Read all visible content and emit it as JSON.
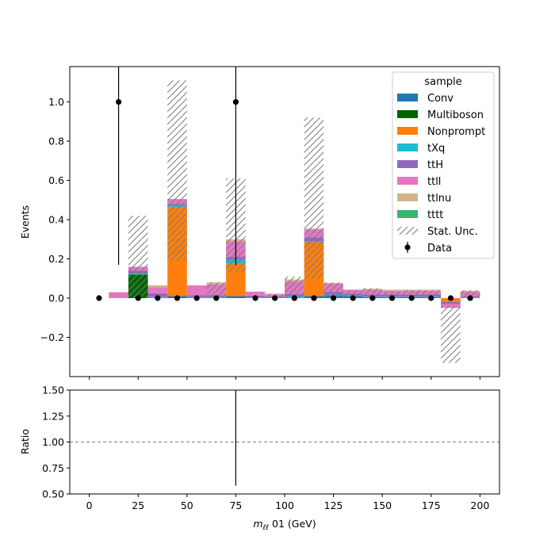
{
  "chart_data": [
    {
      "type": "bar",
      "stacked": true,
      "ylabel": "Events",
      "xlim": [
        -10,
        210
      ],
      "ylim": [
        -0.4,
        1.18
      ],
      "yticks": [
        -0.2,
        0.0,
        0.2,
        0.4,
        0.6,
        0.8,
        1.0
      ],
      "ytick_labels": [
        "−0.2",
        "0.0",
        "0.2",
        "0.4",
        "0.6",
        "0.8",
        "1.0"
      ],
      "bin_edges": [
        0,
        10,
        20,
        30,
        40,
        50,
        60,
        70,
        80,
        90,
        100,
        110,
        120,
        130,
        140,
        150,
        160,
        170,
        180,
        190,
        200
      ],
      "legend": {
        "title": "sample",
        "placement": "upper right",
        "entries": [
          "Conv",
          "Multiboson",
          "Nonprompt",
          "tXq",
          "ttH",
          "ttll",
          "ttlnu",
          "tttt",
          "Stat. Unc.",
          "Data"
        ]
      },
      "series": [
        {
          "name": "Conv",
          "color": "#1f77b4",
          "values": [
            0,
            0,
            0,
            0,
            0.01,
            0,
            0,
            0.01,
            0,
            0,
            0,
            0.01,
            0.015,
            0.01,
            0.005,
            0.005,
            0.005,
            0.005,
            0,
            0
          ]
        },
        {
          "name": "Multiboson",
          "color": "#006400",
          "values": [
            0,
            0,
            0.12,
            0,
            0,
            0,
            0,
            0,
            0,
            0,
            0,
            0,
            0,
            0,
            0,
            0,
            0,
            0,
            0,
            0
          ]
        },
        {
          "name": "Nonprompt",
          "color": "#ff7f0e",
          "values": [
            0,
            0,
            0,
            0,
            0.455,
            0,
            0,
            0.165,
            0,
            0,
            0,
            0.275,
            0,
            0,
            0,
            0,
            0,
            0,
            -0.02,
            0
          ]
        },
        {
          "name": "tXq",
          "color": "#17becf",
          "values": [
            0,
            0,
            0.005,
            0.005,
            0.005,
            0.005,
            0.005,
            0.02,
            0.003,
            0.003,
            0.01,
            0.005,
            0.003,
            0.003,
            0.003,
            0.003,
            0.003,
            0.003,
            0,
            0.003
          ]
        },
        {
          "name": "ttH",
          "color": "#9467bd",
          "values": [
            0,
            0,
            0.015,
            0.02,
            0.01,
            0.01,
            0.01,
            0.015,
            0.01,
            0.005,
            0.01,
            0.02,
            0.015,
            0.01,
            0.01,
            0.01,
            0.01,
            0.01,
            -0.01,
            0.005
          ]
        },
        {
          "name": "ttll",
          "color": "#e377c2",
          "values": [
            0,
            0.03,
            0.02,
            0.03,
            0.025,
            0.05,
            0.055,
            0.08,
            0.02,
            0.01,
            0.065,
            0.04,
            0.04,
            0.02,
            0.025,
            0.02,
            0.02,
            0.02,
            -0.02,
            0.025
          ]
        },
        {
          "name": "ttlnu",
          "color": "#d2b48c",
          "values": [
            0,
            0,
            0,
            0.01,
            0,
            0,
            0.01,
            0.01,
            0,
            0.005,
            0.01,
            0.005,
            0.005,
            0,
            0.005,
            0.005,
            0.005,
            0.005,
            0,
            0.005
          ]
        },
        {
          "name": "tttt",
          "color": "#3cb371",
          "values": [
            0,
            0,
            0,
            0,
            0,
            0,
            0,
            0,
            0,
            0,
            0,
            0,
            0,
            0,
            0,
            0,
            0,
            0,
            0,
            0
          ]
        }
      ],
      "stat_unc": {
        "name": "Stat. Unc.",
        "low": [
          0,
          0,
          0,
          0.07,
          0.19,
          0,
          0,
          0.13,
          0,
          0,
          0,
          0.1,
          0,
          0,
          0,
          0,
          0,
          0,
          -0.33,
          0
        ],
        "high": [
          0,
          0,
          0.42,
          0.08,
          1.11,
          0,
          0.08,
          0.61,
          0,
          0.02,
          0.11,
          0.92,
          0.08,
          0.04,
          0.05,
          0.03,
          0.04,
          0.04,
          -0.04,
          0.04
        ]
      },
      "data": {
        "name": "Data",
        "x": [
          5,
          15,
          25,
          35,
          45,
          55,
          65,
          75,
          85,
          95,
          105,
          115,
          125,
          135,
          145,
          155,
          165,
          175,
          185,
          195
        ],
        "y": [
          0,
          1,
          0,
          0,
          0,
          0,
          0,
          1,
          0,
          0,
          0,
          0,
          0,
          0,
          0,
          0,
          0,
          0,
          0,
          0
        ],
        "err_low": [
          0,
          0.83,
          0,
          0,
          0,
          0,
          0,
          0.83,
          0,
          0,
          0,
          0,
          0,
          0,
          0,
          0,
          0,
          0,
          0,
          0
        ],
        "err_high": [
          0,
          2.3,
          0,
          0,
          0,
          0,
          0,
          2.3,
          0,
          0,
          0,
          0,
          0,
          0,
          0,
          0,
          0,
          0,
          0,
          0
        ]
      }
    },
    {
      "type": "line",
      "xlabel_main": "m",
      "xlabel_sub": "ℓℓ",
      "xlabel_rest": " 01 (GeV)",
      "ylabel": "Ratio",
      "xlim": [
        -10,
        210
      ],
      "ylim": [
        0.5,
        1.5
      ],
      "xticks": [
        0,
        25,
        50,
        75,
        100,
        125,
        150,
        175,
        200
      ],
      "xtick_labels": [
        "0",
        "25",
        "50",
        "75",
        "100",
        "125",
        "150",
        "175",
        "200"
      ],
      "yticks": [
        0.5,
        0.75,
        1.0,
        1.25,
        1.5
      ],
      "ytick_labels": [
        "0.50",
        "0.75",
        "1.00",
        "1.25",
        "1.50"
      ],
      "reference_line": 1.0,
      "ratio_points": {
        "x": [
          75
        ],
        "y": [
          1.0
        ],
        "err_low": [
          0.42
        ],
        "err_high": [
          1.3
        ]
      }
    }
  ]
}
